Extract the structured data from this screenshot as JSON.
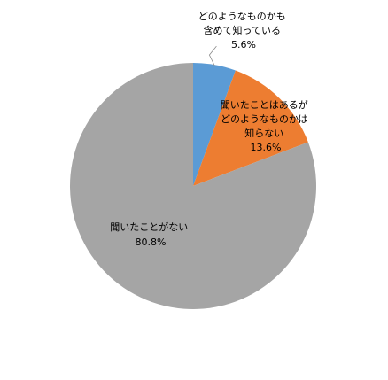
{
  "chart_data": {
    "type": "pie",
    "start_angle_deg": 0,
    "direction": "clockwise",
    "legend": "none",
    "slices": [
      {
        "label": [
          "どのようなものかも",
          "含めて知っている"
        ],
        "value": 5.6,
        "value_label": "5.6%",
        "color": "#5B9BD5",
        "label_placement": "outside-with-leader"
      },
      {
        "label": [
          "聞いたことはあるが",
          "どのようなものかは",
          "知らない"
        ],
        "value": 13.6,
        "value_label": "13.6%",
        "color": "#ED7D31",
        "label_placement": "inside"
      },
      {
        "label": [
          "聞いたことがない"
        ],
        "value": 80.8,
        "value_label": "80.8%",
        "color": "#A5A5A5",
        "label_placement": "inside"
      }
    ]
  }
}
